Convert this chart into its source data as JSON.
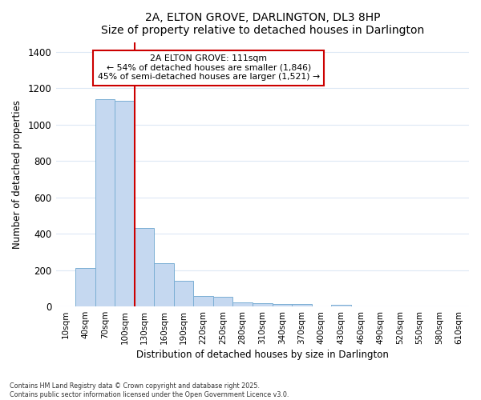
{
  "title1": "2A, ELTON GROVE, DARLINGTON, DL3 8HP",
  "title2": "Size of property relative to detached houses in Darlington",
  "xlabel": "Distribution of detached houses by size in Darlington",
  "ylabel": "Number of detached properties",
  "bar_labels": [
    "10sqm",
    "40sqm",
    "70sqm",
    "100sqm",
    "130sqm",
    "160sqm",
    "190sqm",
    "220sqm",
    "250sqm",
    "280sqm",
    "310sqm",
    "340sqm",
    "370sqm",
    "400sqm",
    "430sqm",
    "460sqm",
    "490sqm",
    "520sqm",
    "550sqm",
    "580sqm",
    "610sqm"
  ],
  "bar_values": [
    0,
    210,
    1140,
    1130,
    430,
    240,
    140,
    58,
    55,
    25,
    20,
    12,
    12,
    0,
    10,
    0,
    0,
    0,
    0,
    0,
    0
  ],
  "bar_color": "#c5d8f0",
  "bar_edge_color": "#7bafd4",
  "background_color": "#ffffff",
  "grid_color": "#dde8f5",
  "vline_color": "#cc0000",
  "vline_x_index": 3,
  "annotation_title": "2A ELTON GROVE: 111sqm",
  "annotation_line1": "← 54% of detached houses are smaller (1,846)",
  "annotation_line2": "45% of semi-detached houses are larger (1,521) →",
  "annotation_box_color": "#ffffff",
  "annotation_box_edge_color": "#cc0000",
  "ylim": [
    0,
    1450
  ],
  "yticks": [
    0,
    200,
    400,
    600,
    800,
    1000,
    1200,
    1400
  ],
  "footer1": "Contains HM Land Registry data © Crown copyright and database right 2025.",
  "footer2": "Contains public sector information licensed under the Open Government Licence v3.0."
}
